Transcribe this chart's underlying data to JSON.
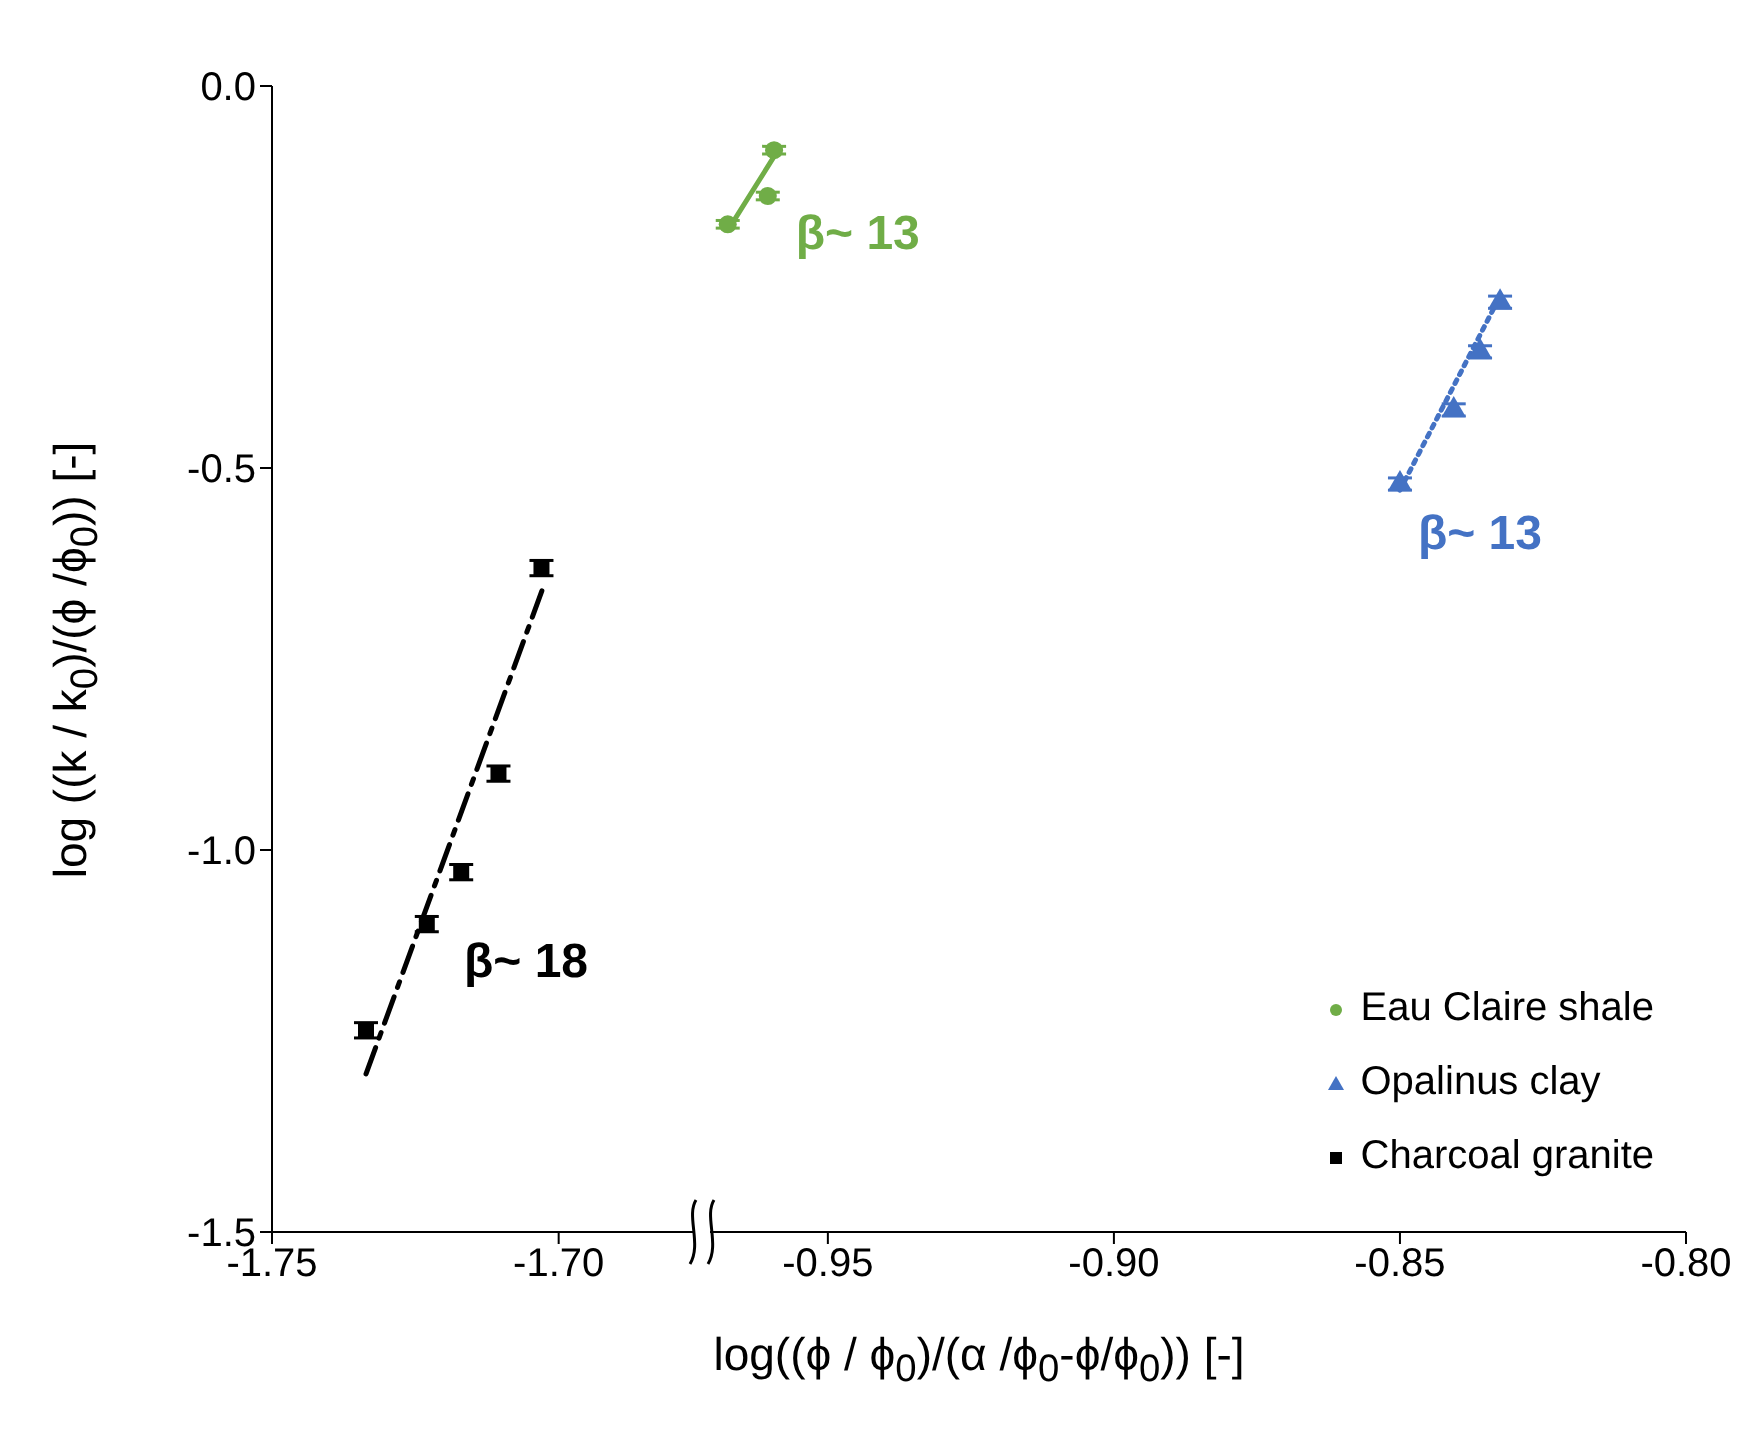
{
  "chart_data": [
    {
      "type": "scatter",
      "ylabel": "log ((k / k$_{0}$)/(ϕ /ϕ$_{0}$)) [-]",
      "ylim": [
        -1.5,
        0
      ],
      "yticks": [
        {
          "value": -1.5,
          "label": "-1.5"
        },
        {
          "value": -1.0,
          "label": "-1.0"
        },
        {
          "value": -0.5,
          "label": "-0.5"
        },
        {
          "value": 0,
          "label": "0.0"
        }
      ],
      "xlim": [
        -1.75,
        -1.675
      ],
      "xticks": [
        {
          "value": -1.75,
          "label": "-1.75"
        },
        {
          "value": -1.7,
          "label": "-1.70"
        }
      ],
      "series": [
        {
          "name": "Charcoal granite",
          "color": "#000000",
          "marker": "square",
          "x": [
            -1.7336,
            -1.723,
            -1.717,
            -1.7105,
            -1.703
          ],
          "values": [
            -1.236,
            -1.097,
            -1.029,
            -0.9,
            -0.631
          ],
          "errors": [
            0.01,
            0.01,
            0.01,
            0.01,
            0.01
          ]
        },
        {
          "type": "line",
          "color": "#000000",
          "line_style": "dashed",
          "marker": "none",
          "x": [
            -1.7336,
            -1.7025
          ],
          "values": [
            -1.293,
            -0.652
          ]
        }
      ],
      "annotations": [
        "β~ 18"
      ]
    },
    {
      "type": "scatter",
      "xlabel": "log((ϕ / ϕ$_{0}$)/(α /ϕ$_{0}$-ϕ/ϕ$_{0}$)) [-]",
      "tick_labels": "x",
      "ylim": [
        -1.5,
        0
      ],
      "xlim": [
        -0.972,
        -0.8
      ],
      "xticks": [
        {
          "value": -0.95,
          "label": "-0.95"
        },
        {
          "value": -0.9,
          "label": "-0.90"
        },
        {
          "value": -0.85,
          "label": "-0.85"
        },
        {
          "value": -0.8,
          "label": "-0.80"
        }
      ],
      "legend": "bottom right",
      "series": [
        {
          "name": "Eau Claire shale",
          "color": "#70ad47",
          "marker": "circle",
          "x": [
            -0.9675,
            -0.9605,
            -0.9594
          ],
          "values": [
            -0.181,
            -0.144,
            -0.084
          ],
          "errors": [
            0.005,
            0.005,
            0.005
          ]
        },
        {
          "name": "Opalinus clay",
          "color": "#4472c4",
          "marker": "triangle",
          "x": [
            -0.85,
            -0.8406,
            -0.836,
            -0.8325
          ],
          "values": [
            -0.521,
            -0.424,
            -0.348,
            -0.283
          ],
          "errors": [
            0.008,
            0.008,
            0.008,
            0.008
          ]
        },
        {
          "type": "line",
          "color": "#70ad47",
          "line_style": "solid",
          "marker": "none",
          "x": [
            -0.967,
            -0.9587
          ],
          "values": [
            -0.183,
            -0.084
          ]
        },
        {
          "type": "line",
          "color": "#4472c4",
          "line_style": "dotted",
          "marker": "none",
          "x": [
            -0.85,
            -0.8325
          ],
          "values": [
            -0.529,
            -0.275
          ]
        }
      ],
      "annotations": [
        "β~ 13",
        "β~ 13"
      ]
    }
  ]
}
